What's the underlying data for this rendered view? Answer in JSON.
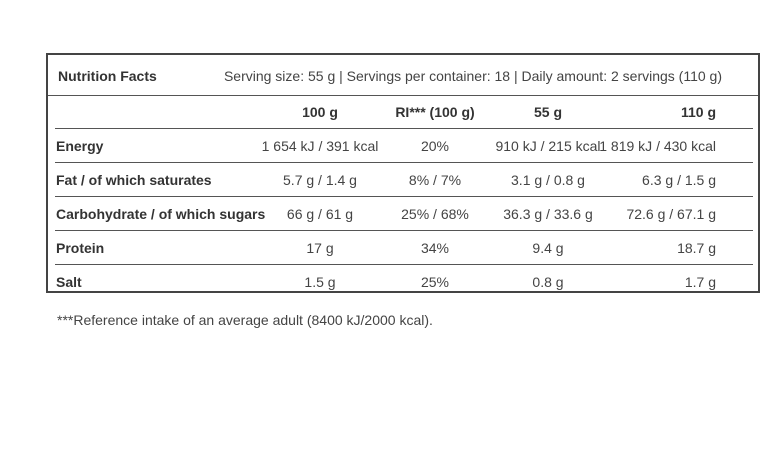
{
  "header": {
    "title": "Nutrition Facts",
    "serving_info": "Serving size: 55 g | Servings per container: 18 | Daily amount: 2 servings (110 g)"
  },
  "table": {
    "columns": [
      "100 g",
      "RI*** (100 g)",
      "55 g",
      "110 g"
    ],
    "rows": [
      {
        "label": "Energy",
        "values": [
          "1 654 kJ / 391 kcal",
          "20%",
          "910 kJ / 215 kcal",
          "1 819 kJ / 430 kcal"
        ]
      },
      {
        "label": "Fat / of which saturates",
        "values": [
          "5.7 g / 1.4 g",
          "8% / 7%",
          "3.1 g / 0.8 g",
          "6.3 g / 1.5 g"
        ]
      },
      {
        "label": "Carbohydrate / of which sugars",
        "values": [
          "66 g / 61 g",
          "25% / 68%",
          "36.3 g / 33.6 g",
          "72.6 g / 67.1 g"
        ]
      },
      {
        "label": "Protein",
        "values": [
          "17 g",
          "34%",
          "9.4 g",
          "18.7 g"
        ]
      },
      {
        "label": "Salt",
        "values": [
          "1.5 g",
          "25%",
          "0.8 g",
          "1.7 g"
        ]
      }
    ]
  },
  "footnote": "***Reference intake of an average adult (8400 kJ/2000 kcal)."
}
